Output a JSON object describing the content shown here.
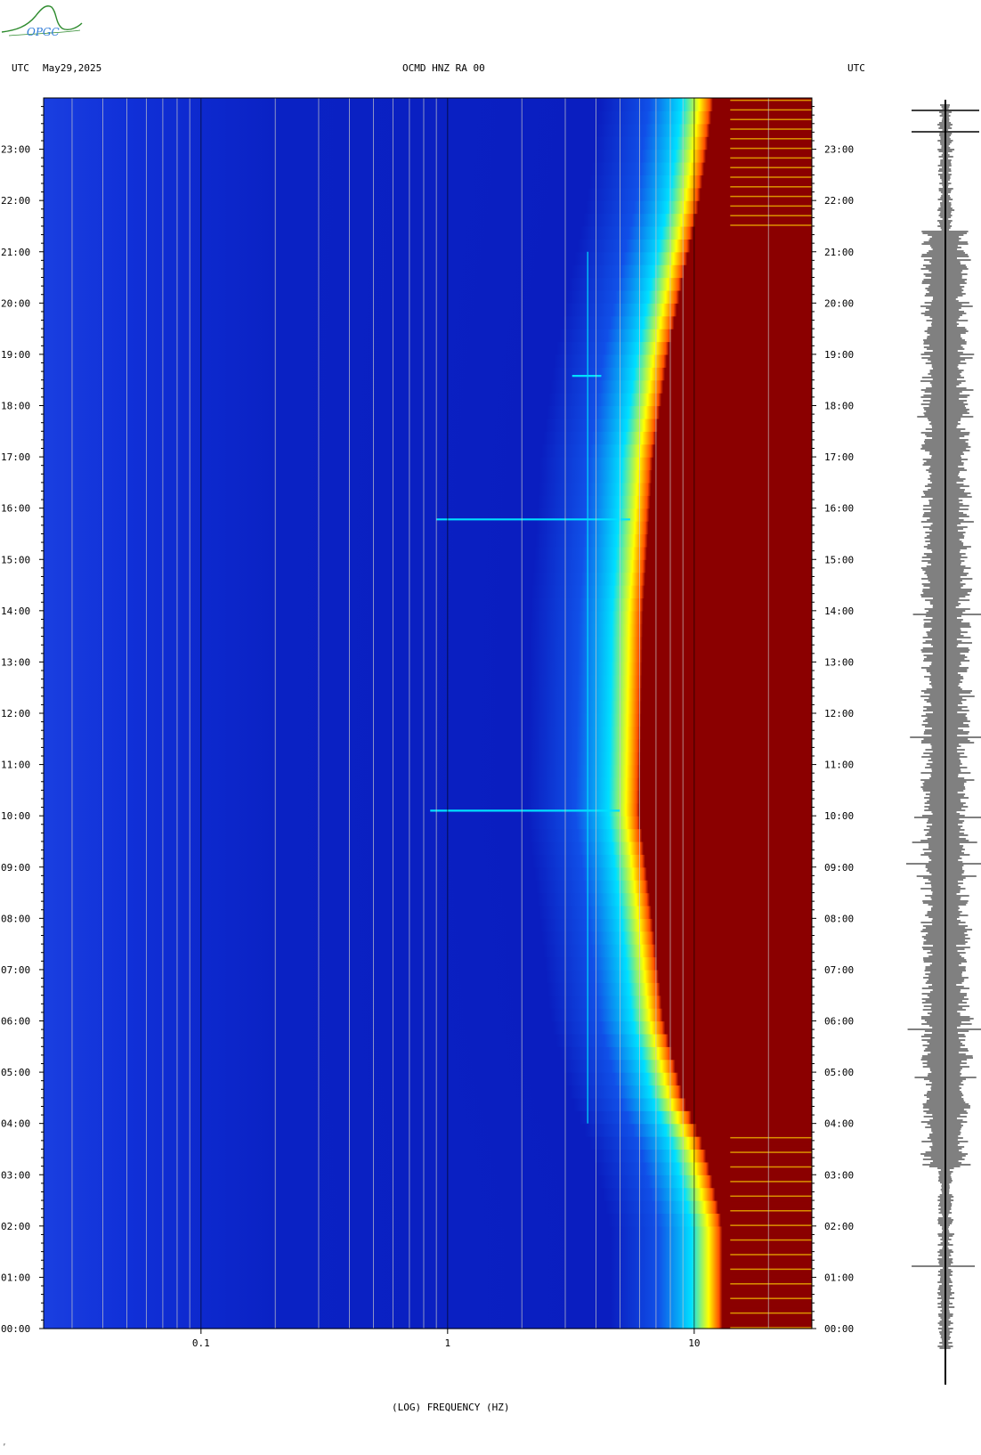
{
  "header": {
    "utc_left": "UTC",
    "date": "May29,2025",
    "station": "OCMD HNZ RA 00",
    "utc_right": "UTC"
  },
  "logo": {
    "text": "OPGC",
    "icon": "opgc-logo-icon"
  },
  "footer": {
    "mark": "ʸ"
  },
  "colors": {
    "low": "#0010c8",
    "mid": "#00e0ff",
    "high": "#ffff00",
    "sat": "#8b0000",
    "trace": "#000000"
  },
  "chart_data": {
    "type": "heatmap",
    "title": "OCMD HNZ RA 00",
    "xlabel": "(LOG) FREQUENCY (HZ)",
    "ylabel": "",
    "x_scale": "log",
    "xlim": [
      0.023,
      30
    ],
    "ylim": [
      "00:00",
      "24:00"
    ],
    "x_ticks": [
      {
        "value": 0.1,
        "label": "0.1"
      },
      {
        "value": 1,
        "label": "1"
      },
      {
        "value": 10,
        "label": "10"
      }
    ],
    "y_ticks": [
      "00:00",
      "01:00",
      "02:00",
      "03:00",
      "04:00",
      "05:00",
      "06:00",
      "07:00",
      "08:00",
      "09:00",
      "10:00",
      "11:00",
      "12:00",
      "13:00",
      "14:00",
      "15:00",
      "16:00",
      "17:00",
      "18:00",
      "19:00",
      "20:00",
      "21:00",
      "22:00",
      "23:00"
    ],
    "grid_frequencies": [
      0.03,
      0.04,
      0.05,
      0.06,
      0.07,
      0.08,
      0.09,
      0.1,
      0.2,
      0.3,
      0.4,
      0.5,
      0.6,
      0.7,
      0.8,
      0.9,
      1,
      2,
      3,
      4,
      5,
      6,
      7,
      8,
      9,
      10,
      20
    ],
    "saturation_edge_hz": [
      {
        "hour": 0,
        "hz": 13
      },
      {
        "hour": 2,
        "hz": 13
      },
      {
        "hour": 3.5,
        "hz": 11
      },
      {
        "hour": 4.5,
        "hz": 9
      },
      {
        "hour": 6,
        "hz": 7.5
      },
      {
        "hour": 10,
        "hz": 6
      },
      {
        "hour": 14,
        "hz": 6.2
      },
      {
        "hour": 17,
        "hz": 6.8
      },
      {
        "hour": 19,
        "hz": 7.8
      },
      {
        "hour": 20.5,
        "hz": 9
      },
      {
        "hour": 22,
        "hz": 10.5
      },
      {
        "hour": 24,
        "hz": 12
      }
    ],
    "notable_events": [
      {
        "hour": 15.78,
        "hz_from": 0.9,
        "hz_to": 5.5
      },
      {
        "hour": 10.1,
        "hz_from": 0.85,
        "hz_to": 5.0
      },
      {
        "hour": 18.58,
        "hz_from": 3.2,
        "hz_to": 4.2
      }
    ],
    "persistent_lines_hz": [
      3.7
    ]
  }
}
